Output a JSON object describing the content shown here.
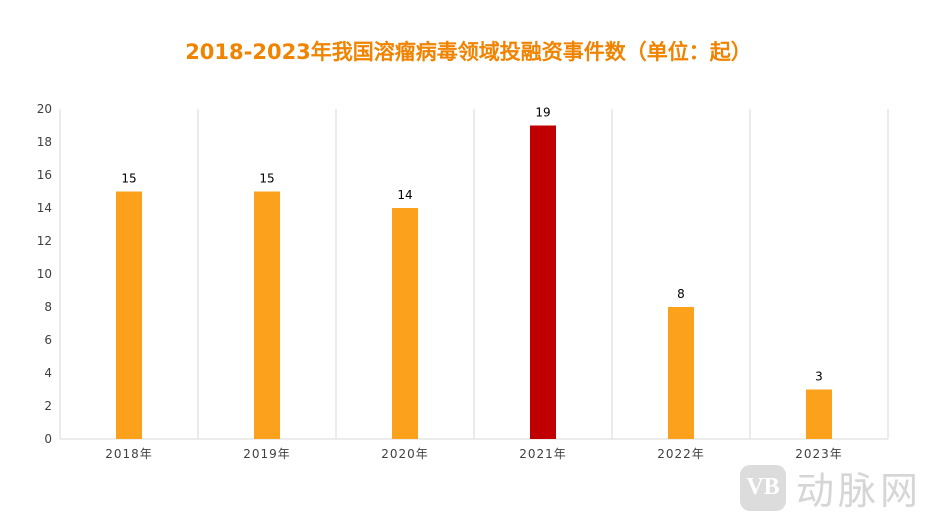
{
  "chart_data": {
    "type": "bar",
    "title": "2018-2023年我国溶瘤病毒领域投融资事件数（单位：起）",
    "categories": [
      "2018年",
      "2019年",
      "2020年",
      "2021年",
      "2022年",
      "2023年"
    ],
    "values": [
      15,
      15,
      14,
      19,
      8,
      3
    ],
    "colors": [
      "#fba11b",
      "#fba11b",
      "#fba11b",
      "#c00000",
      "#fba11b",
      "#fba11b"
    ],
    "xlabel": "",
    "ylabel": "",
    "ylim": [
      0,
      20
    ],
    "yticks": [
      0,
      2,
      4,
      6,
      8,
      10,
      12,
      14,
      16,
      18,
      20
    ],
    "grid": "vertical",
    "legend": "none"
  },
  "watermark": {
    "logo": "VB",
    "text": "动脉网"
  }
}
